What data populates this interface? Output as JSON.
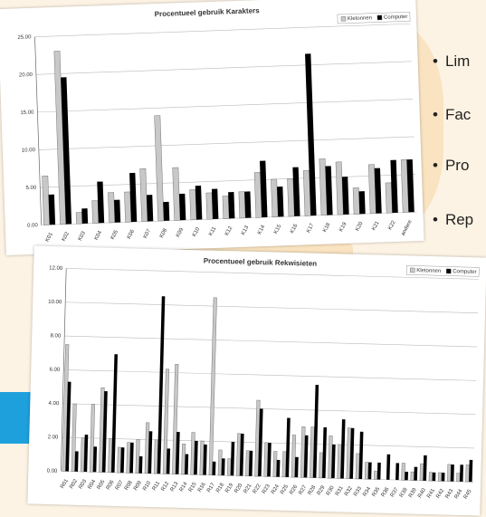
{
  "bullets": [
    "Lim",
    "Fac",
    "Pro",
    "Rep"
  ],
  "chart_data": [
    {
      "type": "bar",
      "title": "Procentueel gebruik Karakters",
      "categories": [
        "K01",
        "K02",
        "K03",
        "K04",
        "K05",
        "K06",
        "K07",
        "K08",
        "K09",
        "K10",
        "K11",
        "K12",
        "K13",
        "K14",
        "K15",
        "K16",
        "K17",
        "K18",
        "K19",
        "K20",
        "K21",
        "K22",
        "andere"
      ],
      "series": [
        {
          "name": "Kletonnen",
          "color": "#c8c8c8",
          "values": [
            6.5,
            23,
            1.5,
            3,
            4,
            4,
            7,
            14,
            7,
            4,
            3.5,
            3,
            3.5,
            6,
            5,
            5,
            6,
            7.5,
            7,
            3.5,
            6.5,
            4,
            7
          ]
        },
        {
          "name": "Computer",
          "color": "#000000",
          "values": [
            4,
            19.5,
            2,
            5.5,
            3,
            6.5,
            3.5,
            2.5,
            3.5,
            4.5,
            4,
            3.5,
            3.5,
            7.5,
            4,
            6.5,
            21.5,
            6.5,
            5,
            3,
            6,
            7,
            7
          ]
        }
      ],
      "ylim": [
        0,
        25
      ],
      "yticks": [
        {
          "value": 0,
          "label": "0.00"
        },
        {
          "value": 5,
          "label": "5.00"
        },
        {
          "value": 10,
          "label": "10.00"
        },
        {
          "value": 15,
          "label": "15.00"
        },
        {
          "value": 20,
          "label": "20.00"
        },
        {
          "value": 25,
          "label": "25.00"
        }
      ],
      "grid": true,
      "legend": "top-right"
    },
    {
      "type": "bar",
      "title": "Procentueel gebruik Rekwisieten",
      "categories": [
        "R01",
        "R02",
        "R03",
        "R04",
        "R05",
        "R06",
        "R07",
        "R08",
        "R09",
        "R10",
        "R11",
        "R12",
        "R13",
        "R14",
        "R15",
        "R16",
        "R17",
        "R18",
        "R19",
        "R20",
        "R21",
        "R22",
        "R23",
        "R24",
        "R25",
        "R26",
        "R27",
        "R28",
        "R29",
        "R30",
        "R31",
        "R32",
        "R33",
        "R34",
        "R35",
        "R36",
        "R37",
        "R38",
        "R39",
        "R40",
        "R41",
        "R42",
        "R43",
        "R44",
        "R45"
      ],
      "series": [
        {
          "name": "Kletonnen",
          "color": "#c8c8c8",
          "values": [
            7.5,
            4,
            2,
            4,
            5,
            2,
            1.5,
            1.8,
            2,
            3,
            2,
            6.2,
            6.5,
            1.8,
            2.5,
            2,
            10.5,
            1.5,
            1,
            2.5,
            1.5,
            4.5,
            2,
            1.5,
            1.5,
            2.5,
            3,
            3,
            1.5,
            2.5,
            2,
            3,
            1.5,
            1,
            0.5,
            0,
            0,
            1,
            0.5,
            1,
            0.5,
            0.5,
            1,
            0.5,
            1
          ]
        },
        {
          "name": "Computer",
          "color": "#000000",
          "values": [
            5.3,
            1.2,
            2.2,
            1.5,
            4.8,
            7,
            1.5,
            1.8,
            1,
            2.5,
            10.5,
            1.5,
            2.5,
            1.2,
            2,
            1.8,
            0.8,
            1,
            2,
            2.5,
            1.5,
            4,
            2,
            1,
            3.5,
            1.2,
            2.5,
            5.5,
            3,
            2,
            3.5,
            3,
            2.8,
            1,
            1,
            1.5,
            1,
            0.5,
            0.8,
            1.5,
            0.5,
            0.5,
            1,
            1,
            1.3
          ]
        }
      ],
      "ylim": [
        0,
        12
      ],
      "yticks": [
        {
          "value": 0,
          "label": "0.00"
        },
        {
          "value": 2,
          "label": "2.00"
        },
        {
          "value": 4,
          "label": "4.00"
        },
        {
          "value": 6,
          "label": "6.00"
        },
        {
          "value": 8,
          "label": "8.00"
        },
        {
          "value": 10,
          "label": "10.00"
        },
        {
          "value": 12,
          "label": "12.00"
        }
      ],
      "grid": true,
      "legend": "top-right"
    }
  ]
}
